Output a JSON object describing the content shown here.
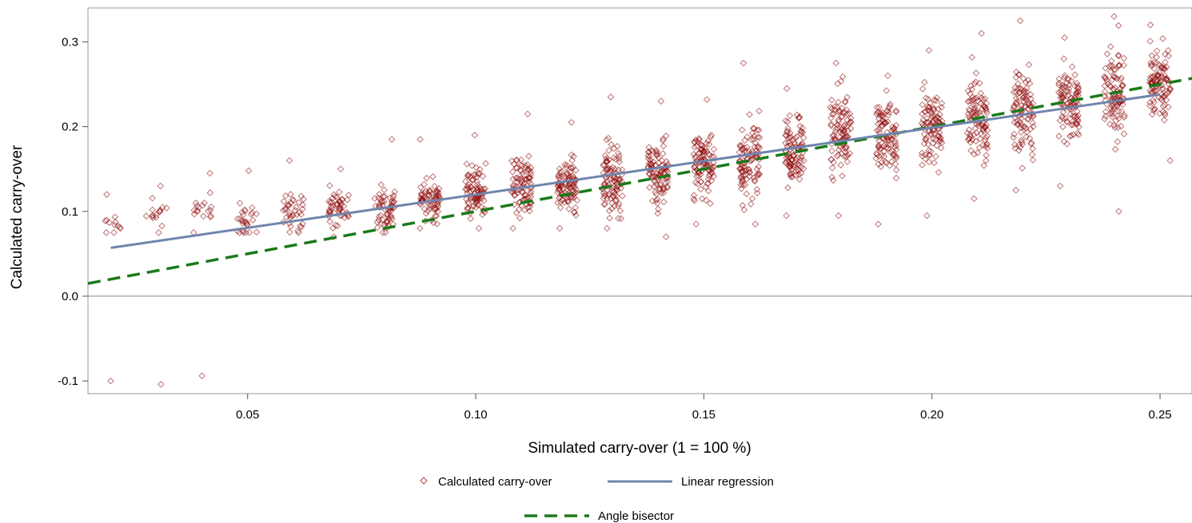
{
  "chart_data": {
    "type": "scatter",
    "title": "",
    "xlabel": "Simulated carry-over (1 = 100 %)",
    "ylabel": "Calculated carry-over",
    "xlim": [
      0.015,
      0.257
    ],
    "ylim": [
      -0.115,
      0.34
    ],
    "x_ticks": [
      {
        "value": 0.05,
        "label": "0.05"
      },
      {
        "value": 0.1,
        "label": "0.10"
      },
      {
        "value": 0.15,
        "label": "0.15"
      },
      {
        "value": 0.2,
        "label": "0.20"
      },
      {
        "value": 0.25,
        "label": "0.25"
      }
    ],
    "y_ticks": [
      {
        "value": -0.1,
        "label": "-0.1"
      },
      {
        "value": 0.0,
        "label": "0.0"
      },
      {
        "value": 0.1,
        "label": "0.1"
      },
      {
        "value": 0.2,
        "label": "0.2"
      },
      {
        "value": 0.3,
        "label": "0.3"
      }
    ],
    "reference_line_y": 0.0,
    "scatter": {
      "name": "Calculated carry-over",
      "marker": "diamond",
      "color": "#8b0000",
      "x_groups": [
        0.02,
        0.03,
        0.04,
        0.05,
        0.06,
        0.07,
        0.08,
        0.09,
        0.1,
        0.11,
        0.12,
        0.13,
        0.14,
        0.15,
        0.16,
        0.17,
        0.18,
        0.19,
        0.2,
        0.21,
        0.22,
        0.23,
        0.24,
        0.25
      ],
      "group_mean": [
        0.085,
        0.098,
        0.102,
        0.088,
        0.098,
        0.105,
        0.103,
        0.115,
        0.12,
        0.13,
        0.13,
        0.14,
        0.145,
        0.155,
        0.16,
        0.175,
        0.19,
        0.19,
        0.2,
        0.21,
        0.22,
        0.23,
        0.24,
        0.25
      ],
      "group_min": [
        0.075,
        0.075,
        0.075,
        0.075,
        0.075,
        0.07,
        0.075,
        0.08,
        0.08,
        0.08,
        0.08,
        0.08,
        0.07,
        0.085,
        0.085,
        0.095,
        0.095,
        0.085,
        0.095,
        0.115,
        0.125,
        0.13,
        0.1,
        0.16
      ],
      "group_max": [
        0.12,
        0.13,
        0.145,
        0.148,
        0.16,
        0.15,
        0.185,
        0.185,
        0.19,
        0.215,
        0.205,
        0.235,
        0.23,
        0.232,
        0.275,
        0.245,
        0.275,
        0.26,
        0.29,
        0.31,
        0.325,
        0.305,
        0.33,
        0.32
      ],
      "group_count": [
        12,
        16,
        18,
        28,
        38,
        50,
        60,
        70,
        85,
        90,
        95,
        100,
        100,
        100,
        100,
        100,
        100,
        100,
        100,
        100,
        100,
        100,
        100,
        100
      ],
      "outliers": [
        {
          "x": 0.02,
          "y": -0.1
        },
        {
          "x": 0.031,
          "y": -0.104
        },
        {
          "x": 0.04,
          "y": -0.094
        }
      ]
    },
    "regression": {
      "name": "Linear regression",
      "color": "#6f85ad",
      "x": [
        0.02,
        0.25
      ],
      "y": [
        0.057,
        0.238
      ]
    },
    "bisector": {
      "name": "Angle bisector",
      "color": "#1a7a1a",
      "dash": true,
      "x": [
        0.015,
        0.257
      ],
      "y": [
        0.015,
        0.257
      ]
    },
    "legend": {
      "placement": "bottom",
      "items": [
        "Calculated carry-over",
        "Linear regression",
        "Angle bisector"
      ]
    }
  }
}
